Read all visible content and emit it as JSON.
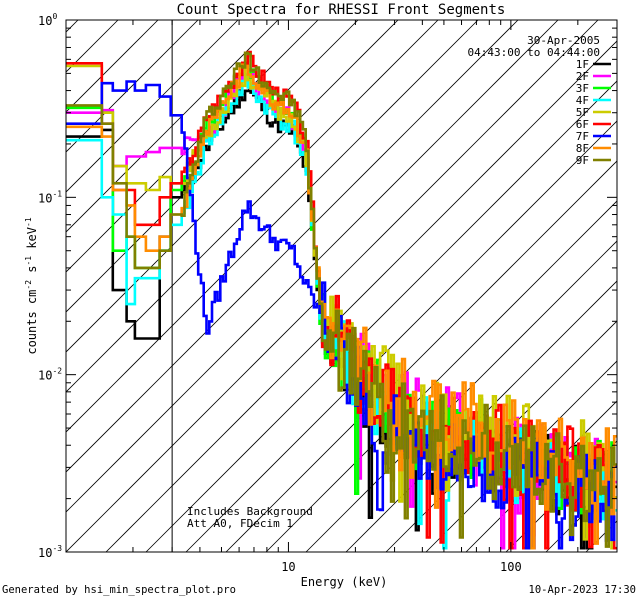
{
  "chart_data": {
    "type": "line",
    "title": "Count Spectra for RHESSI Front Segments",
    "xlabel": "Energy (keV)",
    "ylabel": "counts cm-2 s-1 keV-1",
    "ylabel_parts": {
      "base": "counts cm",
      "e1": "-2",
      "mid1": " s",
      "e2": "-1",
      "mid2": " keV",
      "e3": "-1"
    },
    "xscale": "log",
    "yscale": "log",
    "xlim": [
      1.0,
      300.0
    ],
    "ylim": [
      0.001,
      1.0
    ],
    "x_major_ticks": [
      {
        "v": 10,
        "label": "10"
      },
      {
        "v": 100,
        "label": "100"
      }
    ],
    "y_major_ticks": [
      {
        "v": 1,
        "base": "10",
        "exp": "0"
      },
      {
        "v": 0.1,
        "base": "10",
        "exp": "-1"
      },
      {
        "v": 0.01,
        "base": "10",
        "exp": "-2"
      },
      {
        "v": 0.001,
        "base": "10",
        "exp": "-3"
      }
    ],
    "date": "30-Apr-2005",
    "time_range": "04:43:00 to 04:44:00",
    "annotation_lines": [
      "Includes Background",
      "Att A0, FDecim 1"
    ],
    "hatched_region_max_kev": 3.0,
    "series": [
      {
        "name": "1F",
        "color": "#000000",
        "low": [
          0.22,
          0.24,
          0.03,
          0.02,
          0.016,
          0.016,
          0.06,
          0.1
        ],
        "peak": 0.42,
        "valley": 0.013,
        "peak_fac": 1.0,
        "tail": 0.003,
        "seed": 11
      },
      {
        "name": "2F",
        "color": "#ff00ff",
        "low": [
          0.3,
          0.31,
          0.15,
          0.17,
          0.17,
          0.18,
          0.19,
          0.19
        ],
        "peak": 0.5,
        "valley": 0.014,
        "peak_fac": 1.0,
        "tail": 0.0036,
        "seed": 23
      },
      {
        "name": "3F",
        "color": "#00ff00",
        "low": [
          0.32,
          0.3,
          0.05,
          0.06,
          0.04,
          0.04,
          0.05,
          0.11
        ],
        "peak": 0.55,
        "valley": 0.013,
        "peak_fac": 1.0,
        "tail": 0.0034,
        "seed": 37
      },
      {
        "name": "4F",
        "color": "#00ffff",
        "low": [
          0.21,
          0.1,
          0.08,
          0.025,
          0.035,
          0.035,
          0.05,
          0.07
        ],
        "peak": 0.45,
        "valley": 0.014,
        "peak_fac": 1.0,
        "tail": 0.003,
        "seed": 41
      },
      {
        "name": "5F",
        "color": "#cccc00",
        "low": [
          0.55,
          0.3,
          0.15,
          0.12,
          0.12,
          0.11,
          0.13,
          0.12
        ],
        "peak": 0.5,
        "valley": 0.016,
        "peak_fac": 1.0,
        "tail": 0.004,
        "seed": 53
      },
      {
        "name": "6F",
        "color": "#ff0000",
        "low": [
          0.57,
          0.26,
          0.11,
          0.11,
          0.07,
          0.07,
          0.1,
          0.12
        ],
        "peak": 0.62,
        "valley": 0.016,
        "peak_fac": 1.0,
        "tail": 0.0035,
        "seed": 67
      },
      {
        "name": "7F",
        "color": "#0000ff",
        "low": [
          0.26,
          0.44,
          0.4,
          0.45,
          0.4,
          0.43,
          0.37,
          0.29
        ],
        "peak": 0.09,
        "valley": 0.014,
        "peak_fac": 0.3,
        "tail": 0.0026,
        "seed": 79
      },
      {
        "name": "8F",
        "color": "#ff8c00",
        "low": [
          0.25,
          0.22,
          0.11,
          0.09,
          0.06,
          0.05,
          0.06,
          0.08
        ],
        "peak": 0.55,
        "valley": 0.016,
        "peak_fac": 1.0,
        "tail": 0.004,
        "seed": 83
      },
      {
        "name": "9F",
        "color": "#808000",
        "low": [
          0.33,
          0.26,
          0.12,
          0.06,
          0.04,
          0.04,
          0.05,
          0.08
        ],
        "peak": 0.62,
        "valley": 0.014,
        "peak_fac": 1.0,
        "tail": 0.0032,
        "seed": 97
      }
    ]
  },
  "footer": {
    "generated_by": "Generated by hsi_min_spectra_plot.pro",
    "timestamp": "10-Apr-2023 17:30"
  }
}
